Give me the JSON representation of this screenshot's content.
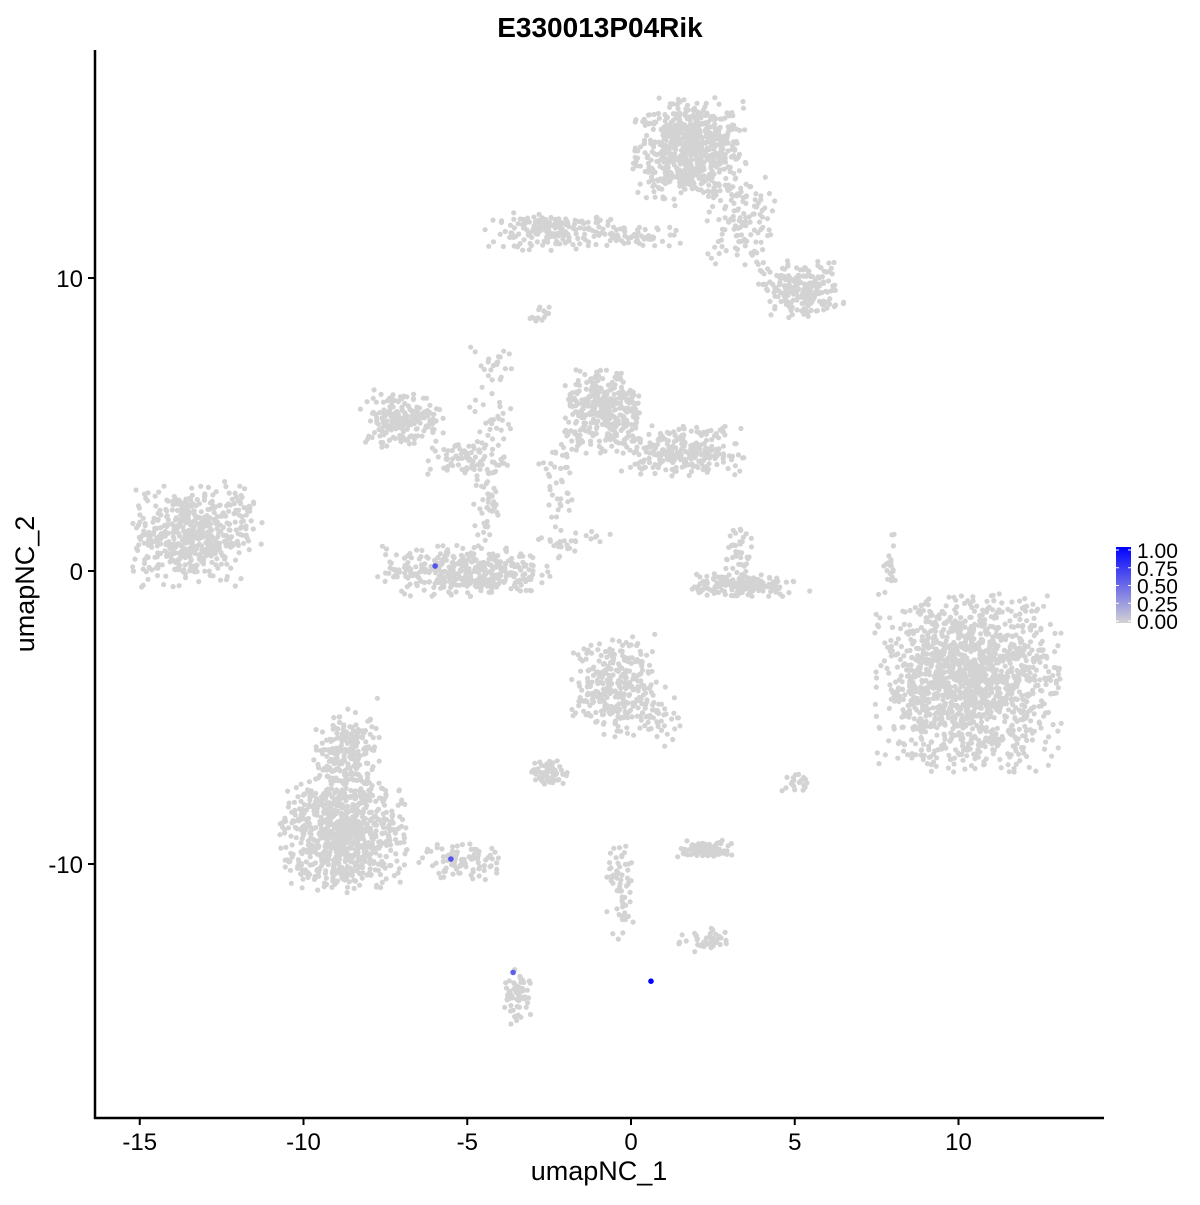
{
  "chart_data": {
    "type": "scatter",
    "title": "E330013P04Rik",
    "xlabel": "umapNC_1",
    "ylabel": "umapNC_2",
    "xlim": [
      -16.4,
      14.4
    ],
    "ylim": [
      -18.6,
      17.9
    ],
    "xticks": [
      -15,
      -10,
      -5,
      0,
      5,
      10
    ],
    "xtick_labels": [
      "-15",
      "-10",
      "-5",
      "0",
      "5",
      "10"
    ],
    "yticks": [
      -10,
      0,
      10
    ],
    "ytick_labels": [
      "-10",
      "0",
      "10"
    ],
    "grid": false,
    "legend": {
      "placement": "right",
      "type": "colorbar",
      "ticks": [
        1.0,
        0.75,
        0.5,
        0.25,
        0.0
      ],
      "tick_labels": [
        "1.00",
        "0.75",
        "0.50",
        "0.25",
        "0.00"
      ],
      "low_color": "#d3d3d3",
      "high_color": "#0000ff"
    },
    "background_point_color": "#d3d3d3",
    "clusters_approx": [
      {
        "center": [
          1.8,
          14.4
        ],
        "sd": [
          0.8,
          0.8
        ],
        "n": 700
      },
      {
        "center": [
          3.3,
          12.0
        ],
        "sd": [
          0.5,
          0.8
        ],
        "n": 120
      },
      {
        "center": [
          5.2,
          9.6
        ],
        "sd": [
          0.6,
          0.45
        ],
        "n": 220
      },
      {
        "center": [
          -2.2,
          11.6
        ],
        "sd": [
          1.0,
          0.3
        ],
        "n": 200
      },
      {
        "center": [
          0.5,
          11.4
        ],
        "sd": [
          0.6,
          0.2
        ],
        "n": 40
      },
      {
        "center": [
          -13.5,
          1.2
        ],
        "sd": [
          0.85,
          0.8
        ],
        "n": 500
      },
      {
        "center": [
          -11.8,
          2.0
        ],
        "sd": [
          0.3,
          0.5
        ],
        "n": 30
      },
      {
        "center": [
          -7.0,
          5.2
        ],
        "sd": [
          0.6,
          0.45
        ],
        "n": 200
      },
      {
        "center": [
          -5.0,
          3.8
        ],
        "sd": [
          0.6,
          0.3
        ],
        "n": 80
      },
      {
        "center": [
          -4.3,
          5.5
        ],
        "sd": [
          0.3,
          1.0
        ],
        "n": 40
      },
      {
        "center": [
          -4.4,
          2.2
        ],
        "sd": [
          0.2,
          0.7
        ],
        "n": 40
      },
      {
        "center": [
          -5.1,
          0.0
        ],
        "sd": [
          1.2,
          0.4
        ],
        "n": 400
      },
      {
        "center": [
          -0.8,
          5.4
        ],
        "sd": [
          0.6,
          0.7
        ],
        "n": 350
      },
      {
        "center": [
          1.6,
          4.1
        ],
        "sd": [
          0.9,
          0.4
        ],
        "n": 250
      },
      {
        "center": [
          -2.2,
          3.0
        ],
        "sd": [
          0.3,
          0.8
        ],
        "n": 40
      },
      {
        "center": [
          -1.9,
          1.0
        ],
        "sd": [
          0.6,
          0.3
        ],
        "n": 30
      },
      {
        "center": [
          3.4,
          -0.5
        ],
        "sd": [
          0.8,
          0.2
        ],
        "n": 170
      },
      {
        "center": [
          3.3,
          0.6
        ],
        "sd": [
          0.2,
          0.5
        ],
        "n": 40
      },
      {
        "center": [
          10.3,
          -3.8
        ],
        "sd": [
          1.3,
          1.4
        ],
        "n": 1500
      },
      {
        "center": [
          -8.8,
          -9.0
        ],
        "sd": [
          0.9,
          0.9
        ],
        "n": 800
      },
      {
        "center": [
          -8.7,
          -6.4
        ],
        "sd": [
          0.5,
          0.8
        ],
        "n": 250
      },
      {
        "center": [
          -5.2,
          -9.9
        ],
        "sd": [
          0.7,
          0.3
        ],
        "n": 90
      },
      {
        "center": [
          -0.5,
          -3.9
        ],
        "sd": [
          0.6,
          0.8
        ],
        "n": 300
      },
      {
        "center": [
          0.9,
          -4.9
        ],
        "sd": [
          0.3,
          0.5
        ],
        "n": 40
      },
      {
        "center": [
          -2.5,
          -6.9
        ],
        "sd": [
          0.3,
          0.2
        ],
        "n": 70
      },
      {
        "center": [
          2.3,
          -9.5
        ],
        "sd": [
          0.4,
          0.15
        ],
        "n": 80
      },
      {
        "center": [
          -0.3,
          -10.9
        ],
        "sd": [
          0.2,
          0.8
        ],
        "n": 60
      },
      {
        "center": [
          2.3,
          -12.6
        ],
        "sd": [
          0.4,
          0.2
        ],
        "n": 40
      },
      {
        "center": [
          -3.5,
          -14.6
        ],
        "sd": [
          0.2,
          0.5
        ],
        "n": 60
      },
      {
        "center": [
          7.9,
          0.2
        ],
        "sd": [
          0.1,
          0.5
        ],
        "n": 20
      },
      {
        "center": [
          5.0,
          -7.3
        ],
        "sd": [
          0.2,
          0.2
        ],
        "n": 20
      },
      {
        "center": [
          -2.8,
          8.7
        ],
        "sd": [
          0.15,
          0.15
        ],
        "n": 15
      },
      {
        "center": [
          -4.0,
          7.0
        ],
        "sd": [
          0.2,
          0.3
        ],
        "n": 12
      }
    ],
    "highlighted_points": [
      {
        "x": -5.98,
        "y": 0.17,
        "value": 0.6
      },
      {
        "x": -5.5,
        "y": -9.83,
        "value": 0.6
      },
      {
        "x": -3.6,
        "y": -13.7,
        "value": 0.55
      },
      {
        "x": 0.61,
        "y": -14.0,
        "value": 1.0
      }
    ]
  }
}
